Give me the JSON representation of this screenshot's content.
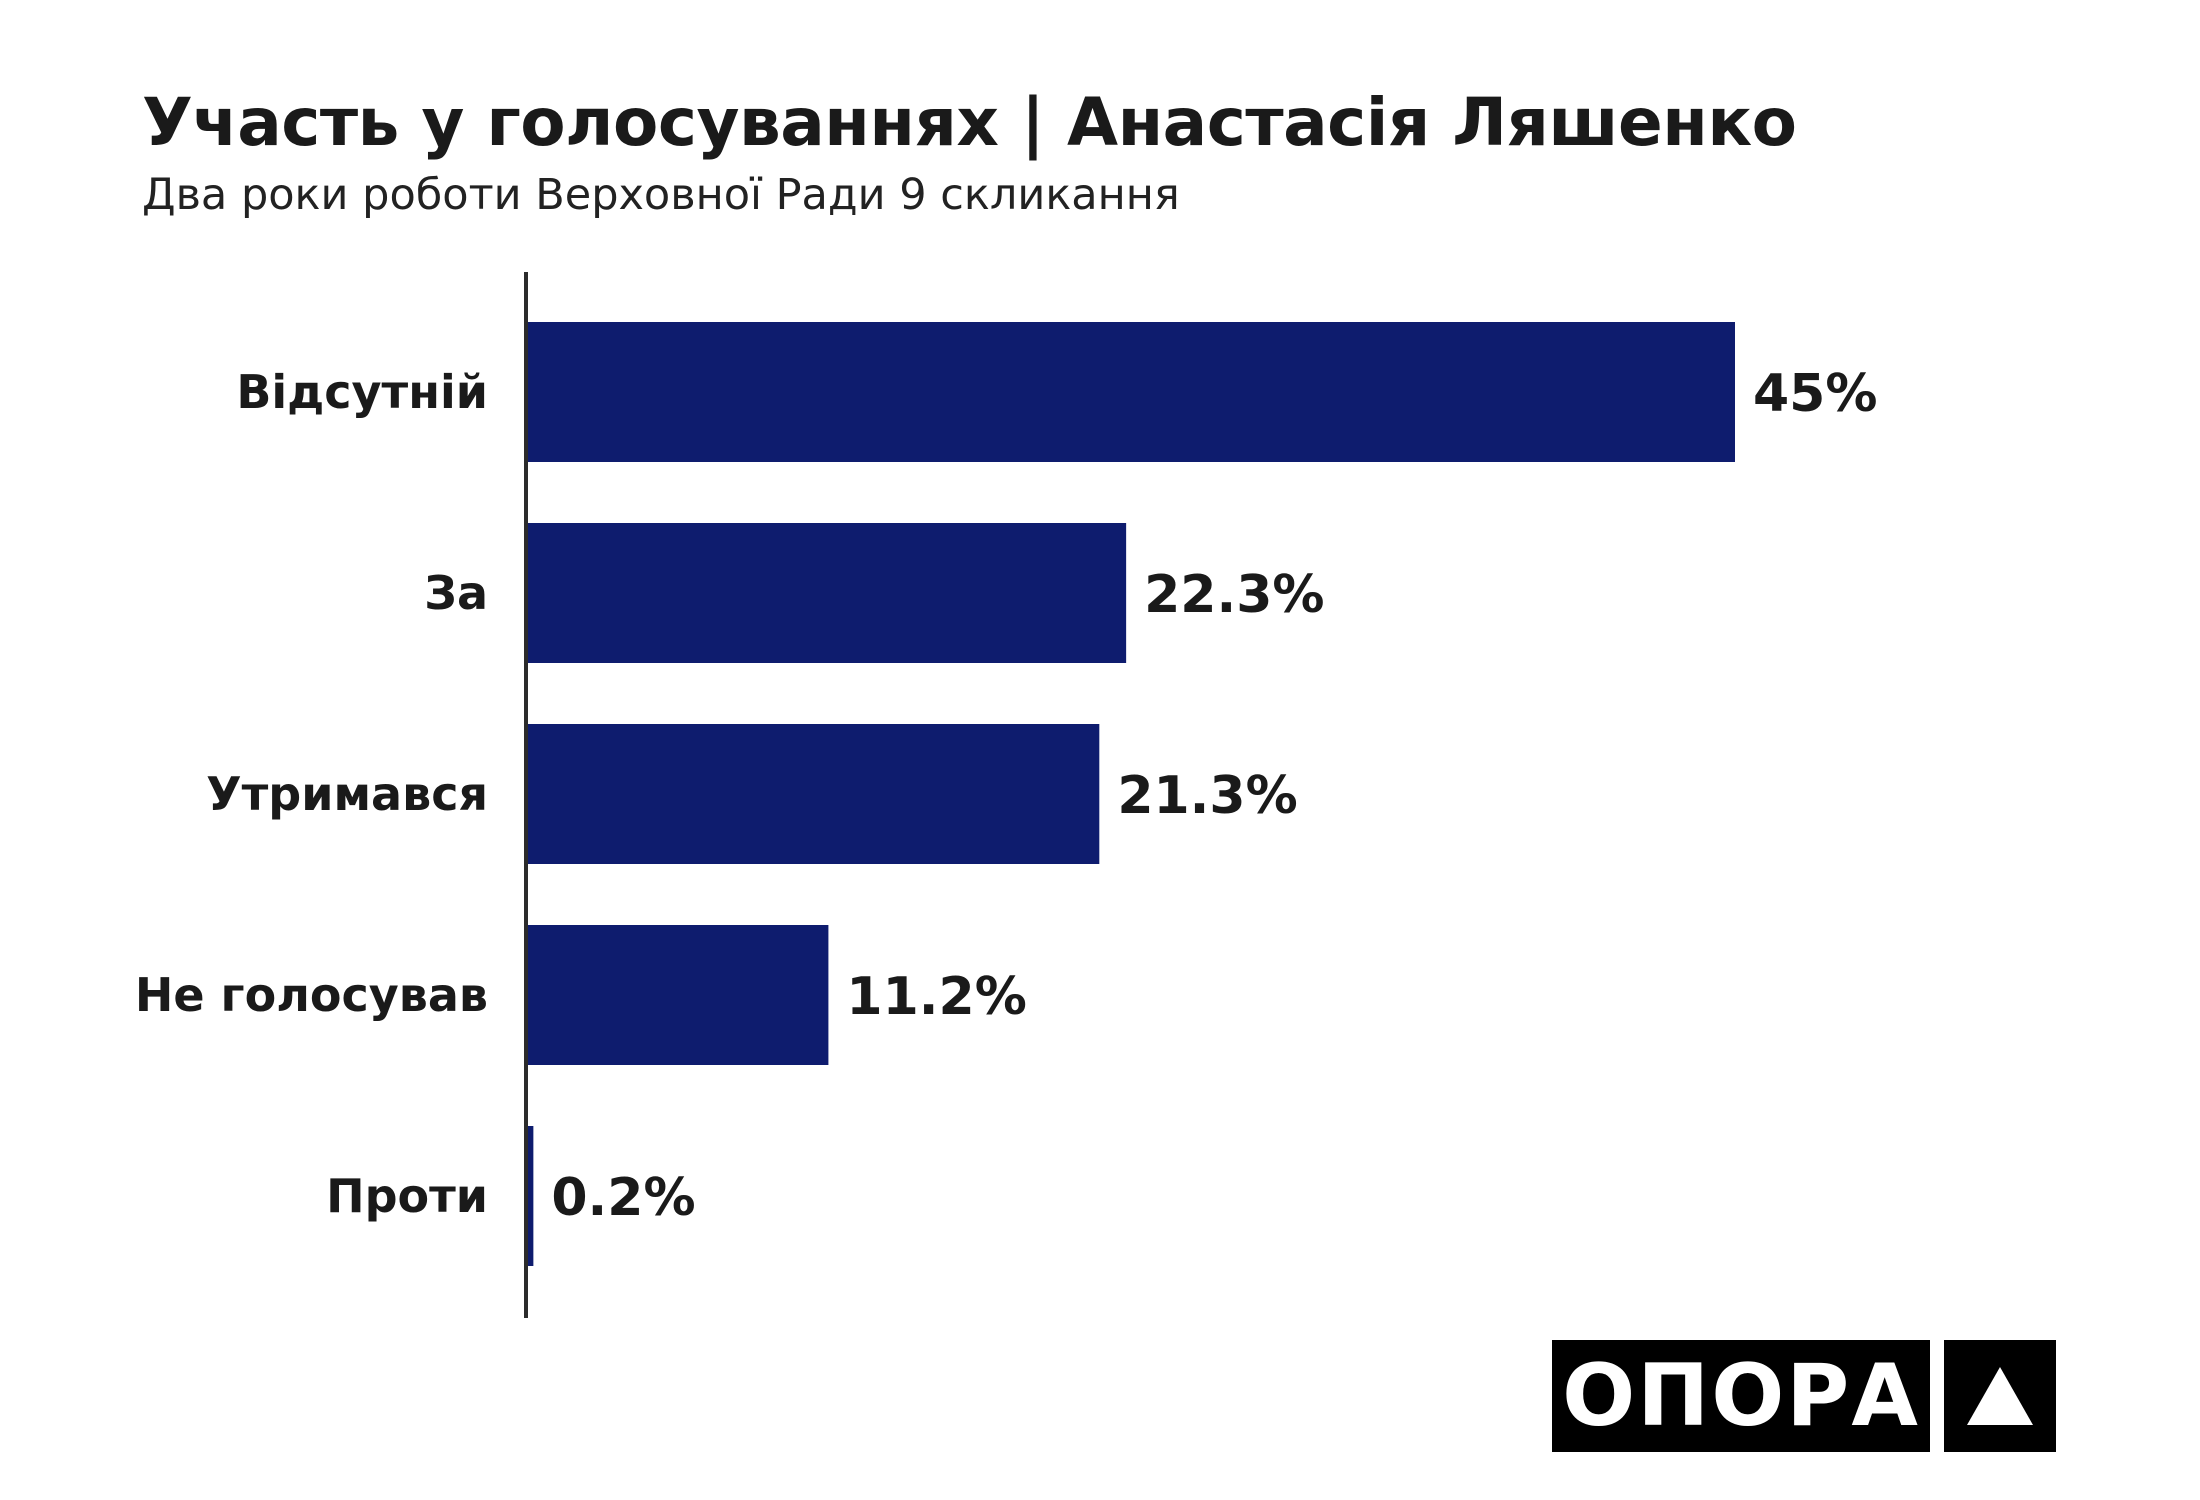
{
  "chart_data": {
    "type": "bar",
    "orientation": "horizontal",
    "title": "Участь у голосуваннях | Анастасія Ляшенко",
    "subtitle": "Два роки роботи Верховної Ради 9 скликання",
    "categories": [
      "Відсутній",
      "За",
      "Утримався",
      "Не голосував",
      "Проти"
    ],
    "values": [
      45,
      22.3,
      21.3,
      11.2,
      0.2
    ],
    "value_labels": [
      "45%",
      "22.3%",
      "21.3%",
      "11.2%",
      "0.2%"
    ],
    "xlim": [
      0,
      50
    ],
    "grid": false,
    "legend": "none",
    "bar_color": "#0e1c6e"
  },
  "logo": {
    "text": "ОПОРА",
    "icon": "triangle-icon"
  }
}
